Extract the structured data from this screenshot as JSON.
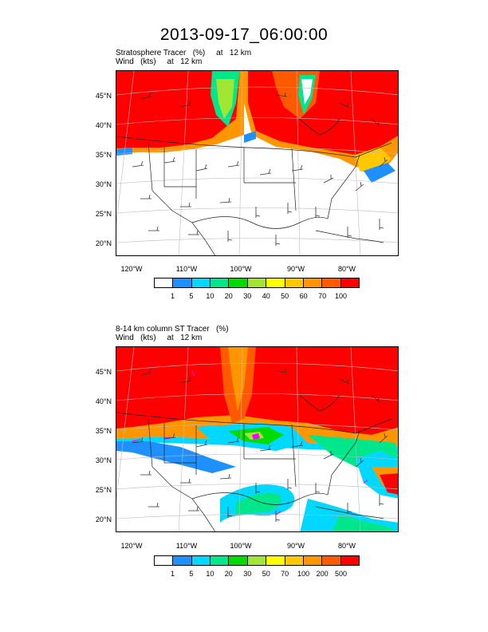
{
  "title": "2013-09-17_06:00:00",
  "panels": [
    {
      "subtitle_1": "Stratosphere Tracer   (%)     at   12 km",
      "subtitle_2": "Wind   (kts)     at   12 km",
      "lat_labels": [
        "45°N",
        "40°N",
        "35°N",
        "30°N",
        "25°N",
        "20°N"
      ],
      "lon_labels": [
        "120°W",
        "110°W",
        "100°W",
        "90°W",
        "80°W"
      ],
      "colorbar": {
        "colors": [
          "#ffffff",
          "#1e90ff",
          "#00d8ff",
          "#00e68a",
          "#00dc00",
          "#a0e632",
          "#ffff00",
          "#ffc800",
          "#ff9600",
          "#ff5a00",
          "#ff0000"
        ],
        "labels": [
          "1",
          "5",
          "10",
          "20",
          "30",
          "40",
          "50",
          "60",
          "70",
          "100"
        ]
      }
    },
    {
      "subtitle_1": "8-14 km column ST Tracer   (%)",
      "subtitle_2": "Wind   (kts)     at   12 km",
      "lat_labels": [
        "45°N",
        "40°N",
        "35°N",
        "30°N",
        "25°N",
        "20°N"
      ],
      "lon_labels": [
        "120°W",
        "110°W",
        "100°W",
        "90°W",
        "80°W"
      ],
      "colorbar": {
        "colors": [
          "#ffffff",
          "#1e90ff",
          "#00d8ff",
          "#00e68a",
          "#00dc00",
          "#a0e632",
          "#ffff00",
          "#ffc800",
          "#ff9600",
          "#ff5a00",
          "#ff0000"
        ],
        "labels": [
          "1",
          "5",
          "10",
          "20",
          "30",
          "50",
          "70",
          "100",
          "200",
          "500"
        ]
      }
    }
  ]
}
